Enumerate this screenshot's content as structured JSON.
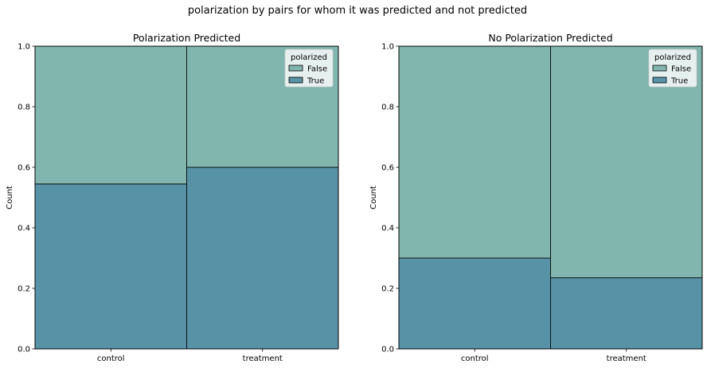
{
  "figure": {
    "suptitle": "polarization by pairs for whom it was predicted and not predicted"
  },
  "chart_data": [
    {
      "type": "bar",
      "stacked": true,
      "title": "Polarization Predicted",
      "xlabel": "",
      "ylabel": "Count",
      "categories": [
        "control",
        "treatment"
      ],
      "ylim": [
        0,
        1.0
      ],
      "yticks": [
        "0.0",
        "0.2",
        "0.4",
        "0.6",
        "0.8",
        "1.0"
      ],
      "series": [
        {
          "name": "True",
          "values": [
            0.545,
            0.6
          ],
          "color": "#5892a7"
        },
        {
          "name": "False",
          "values": [
            0.455,
            0.4
          ],
          "color": "#80b6ad"
        }
      ],
      "legend": {
        "title": "polarized",
        "position": "top-right",
        "entries": [
          "False",
          "True"
        ]
      },
      "grid": false
    },
    {
      "type": "bar",
      "stacked": true,
      "title": "No Polarization Predicted",
      "xlabel": "",
      "ylabel": "Count",
      "categories": [
        "control",
        "treatment"
      ],
      "ylim": [
        0,
        1.0
      ],
      "yticks": [
        "0.0",
        "0.2",
        "0.4",
        "0.6",
        "0.8",
        "1.0"
      ],
      "series": [
        {
          "name": "True",
          "values": [
            0.3,
            0.235
          ],
          "color": "#5892a7"
        },
        {
          "name": "False",
          "values": [
            0.7,
            0.765
          ],
          "color": "#80b6ad"
        }
      ],
      "legend": {
        "title": "polarized",
        "position": "top-right",
        "entries": [
          "False",
          "True"
        ]
      },
      "grid": false
    }
  ]
}
